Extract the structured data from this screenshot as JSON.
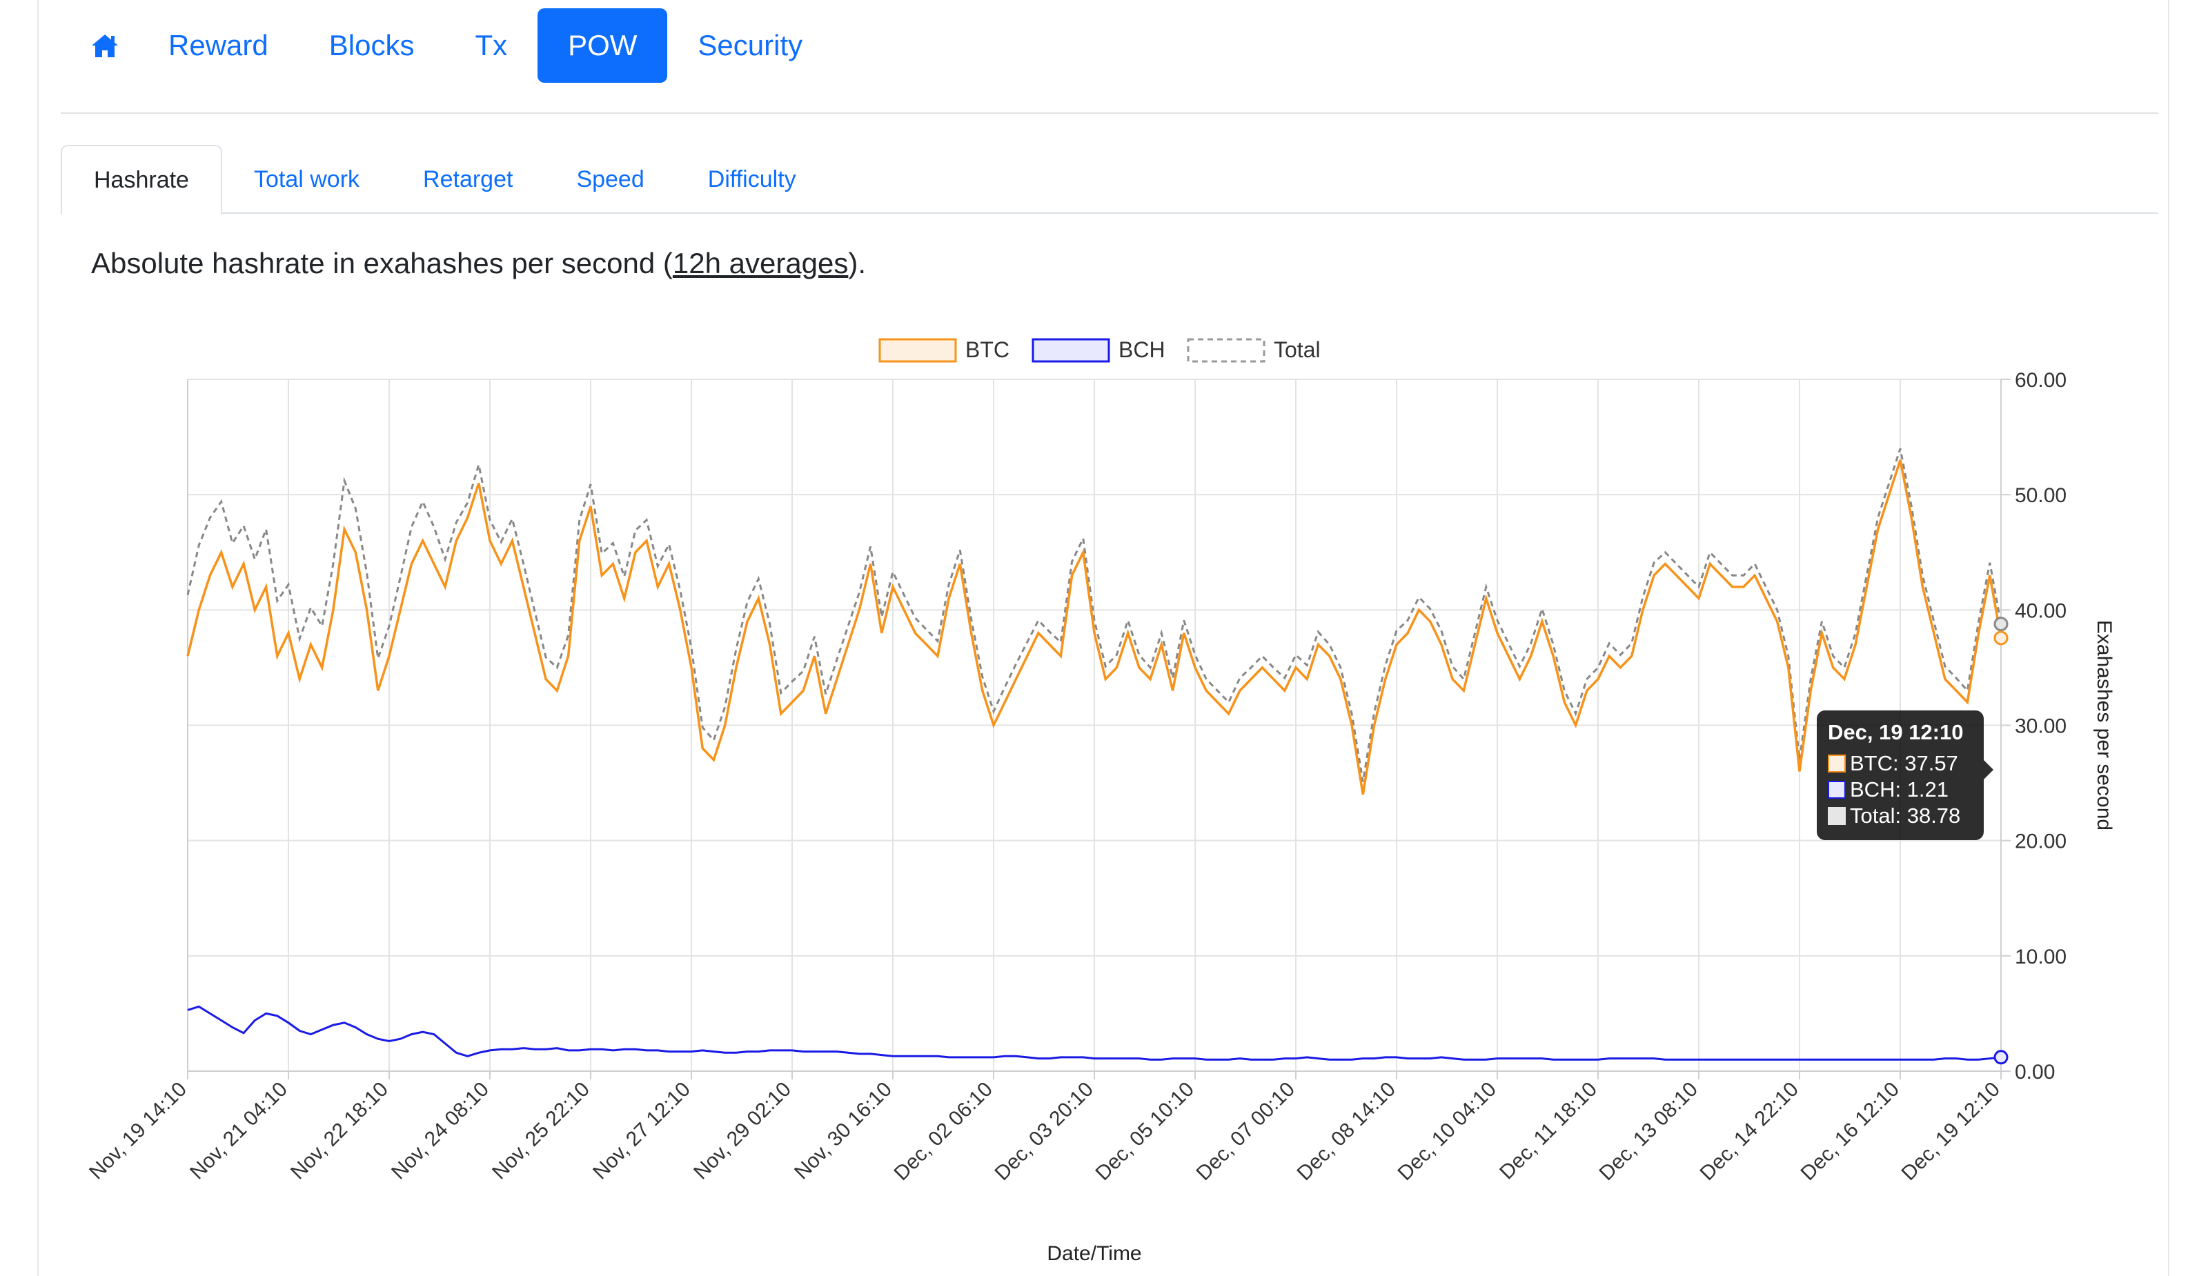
{
  "nav": {
    "items": [
      {
        "label": "Reward"
      },
      {
        "label": "Blocks"
      },
      {
        "label": "Tx"
      },
      {
        "label": "POW"
      },
      {
        "label": "Security"
      }
    ]
  },
  "tabs": [
    "Hashrate",
    "Total work",
    "Retarget",
    "Speed",
    "Difficulty"
  ],
  "description": {
    "prefix": "Absolute hashrate in exahashes per second (",
    "link": "12h averages",
    "suffix": ")."
  },
  "tooltip": {
    "title": "Dec, 19 12:10",
    "rows": [
      {
        "text": "BTC: 37.57"
      },
      {
        "text": "BCH: 1.21"
      },
      {
        "text": "Total: 38.78"
      }
    ]
  },
  "colors": {
    "btc": "#f7931a",
    "bch": "#1a1ae6",
    "total": "#888888",
    "accent": "#0d6efd"
  },
  "chart_data": {
    "type": "line",
    "title": "",
    "xlabel": "Date/Time",
    "ylabel": "Exahashes per second",
    "ylim": [
      0,
      60
    ],
    "yticks": [
      "0.00",
      "10.00",
      "20.00",
      "30.00",
      "40.00",
      "50.00",
      "60.00"
    ],
    "xticks": [
      "Nov, 19 14:10",
      "Nov, 21 04:10",
      "Nov, 22 18:10",
      "Nov, 24 08:10",
      "Nov, 25 22:10",
      "Nov, 27 12:10",
      "Nov, 29 02:10",
      "Nov, 30 16:10",
      "Dec, 02 06:10",
      "Dec, 03 20:10",
      "Dec, 05 10:10",
      "Dec, 07 00:10",
      "Dec, 08 14:10",
      "Dec, 10 04:10",
      "Dec, 11 18:10",
      "Dec, 13 08:10",
      "Dec, 14 22:10",
      "Dec, 16 12:10",
      "Dec, 19 12:10"
    ],
    "legend": [
      "BTC",
      "BCH",
      "Total"
    ],
    "legend_position": "top",
    "series": [
      {
        "name": "BTC",
        "values": [
          36,
          40,
          43,
          45,
          42,
          44,
          40,
          42,
          36,
          38,
          34,
          37,
          35,
          40,
          47,
          45,
          40,
          33,
          36,
          40,
          44,
          46,
          44,
          42,
          46,
          48,
          51,
          46,
          44,
          46,
          42,
          38,
          34,
          33,
          36,
          46,
          49,
          43,
          44,
          41,
          45,
          46,
          42,
          44,
          40,
          35,
          28,
          27,
          30,
          35,
          39,
          41,
          37,
          31,
          32,
          33,
          36,
          31,
          34,
          37,
          40,
          44,
          38,
          42,
          40,
          38,
          37,
          36,
          41,
          44,
          38,
          33,
          30,
          32,
          34,
          36,
          38,
          37,
          36,
          43,
          45,
          38,
          34,
          35,
          38,
          35,
          34,
          37,
          33,
          38,
          35,
          33,
          32,
          31,
          33,
          34,
          35,
          34,
          33,
          35,
          34,
          37,
          36,
          34,
          30,
          24,
          30,
          34,
          37,
          38,
          40,
          39,
          37,
          34,
          33,
          37,
          41,
          38,
          36,
          34,
          36,
          39,
          36,
          32,
          30,
          33,
          34,
          36,
          35,
          36,
          40,
          43,
          44,
          43,
          42,
          41,
          44,
          43,
          42,
          42,
          43,
          41,
          39,
          35,
          26,
          33,
          38,
          35,
          34,
          37,
          42,
          47,
          50,
          53,
          48,
          42,
          38,
          34,
          33,
          32,
          38,
          43,
          37.57
        ]
      },
      {
        "name": "BCH",
        "values": [
          5.3,
          5.6,
          5.0,
          4.4,
          3.8,
          3.3,
          4.4,
          5.0,
          4.8,
          4.2,
          3.5,
          3.2,
          3.6,
          4.0,
          4.2,
          3.8,
          3.2,
          2.8,
          2.6,
          2.8,
          3.2,
          3.4,
          3.2,
          2.4,
          1.6,
          1.3,
          1.6,
          1.8,
          1.9,
          1.9,
          2.0,
          1.9,
          1.9,
          2.0,
          1.8,
          1.8,
          1.9,
          1.9,
          1.8,
          1.9,
          1.9,
          1.8,
          1.8,
          1.7,
          1.7,
          1.7,
          1.8,
          1.7,
          1.6,
          1.6,
          1.7,
          1.7,
          1.8,
          1.8,
          1.8,
          1.7,
          1.7,
          1.7,
          1.7,
          1.6,
          1.5,
          1.5,
          1.4,
          1.3,
          1.3,
          1.3,
          1.3,
          1.3,
          1.2,
          1.2,
          1.2,
          1.2,
          1.2,
          1.3,
          1.3,
          1.2,
          1.1,
          1.1,
          1.2,
          1.2,
          1.2,
          1.1,
          1.1,
          1.1,
          1.1,
          1.1,
          1.0,
          1.0,
          1.1,
          1.1,
          1.1,
          1.0,
          1.0,
          1.0,
          1.1,
          1.0,
          1.0,
          1.0,
          1.1,
          1.1,
          1.2,
          1.1,
          1.0,
          1.0,
          1.0,
          1.1,
          1.1,
          1.2,
          1.2,
          1.1,
          1.1,
          1.1,
          1.2,
          1.1,
          1.0,
          1.0,
          1.0,
          1.1,
          1.1,
          1.1,
          1.1,
          1.1,
          1.0,
          1.0,
          1.0,
          1.0,
          1.0,
          1.1,
          1.1,
          1.1,
          1.1,
          1.1,
          1.0,
          1.0,
          1.0,
          1.0,
          1.0,
          1.0,
          1.0,
          1.0,
          1.0,
          1.0,
          1.0,
          1.0,
          1.0,
          1.0,
          1.0,
          1.0,
          1.0,
          1.0,
          1.0,
          1.0,
          1.0,
          1.0,
          1.0,
          1.0,
          1.0,
          1.1,
          1.1,
          1.0,
          1.0,
          1.1,
          1.21
        ]
      }
    ]
  }
}
